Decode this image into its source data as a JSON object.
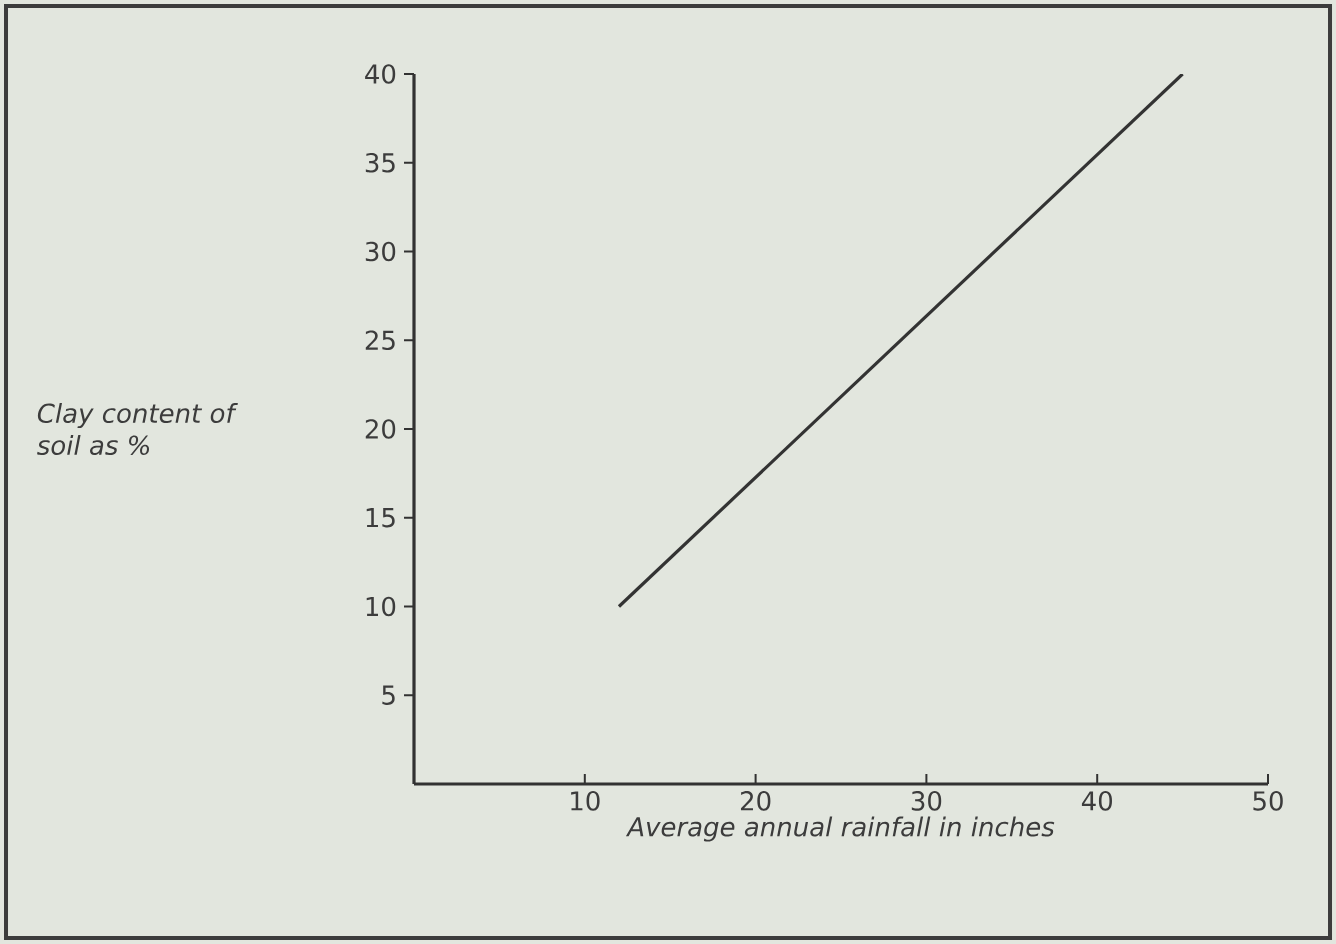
{
  "chart_data": {
    "type": "line",
    "xlabel": "Average annual rainfall in inches",
    "ylabel": "Clay content of soil as %",
    "x": [
      12,
      45
    ],
    "series": [
      {
        "color": "#333333",
        "values": [
          10,
          40
        ]
      }
    ],
    "xlim": [
      0,
      50
    ],
    "ylim": [
      0,
      40
    ],
    "xticks": [
      10,
      20,
      30,
      40,
      50
    ],
    "yticks": [
      5,
      10,
      15,
      20,
      25,
      30,
      35,
      40
    ],
    "grid": false,
    "marker": "none",
    "line_style": "solid"
  }
}
